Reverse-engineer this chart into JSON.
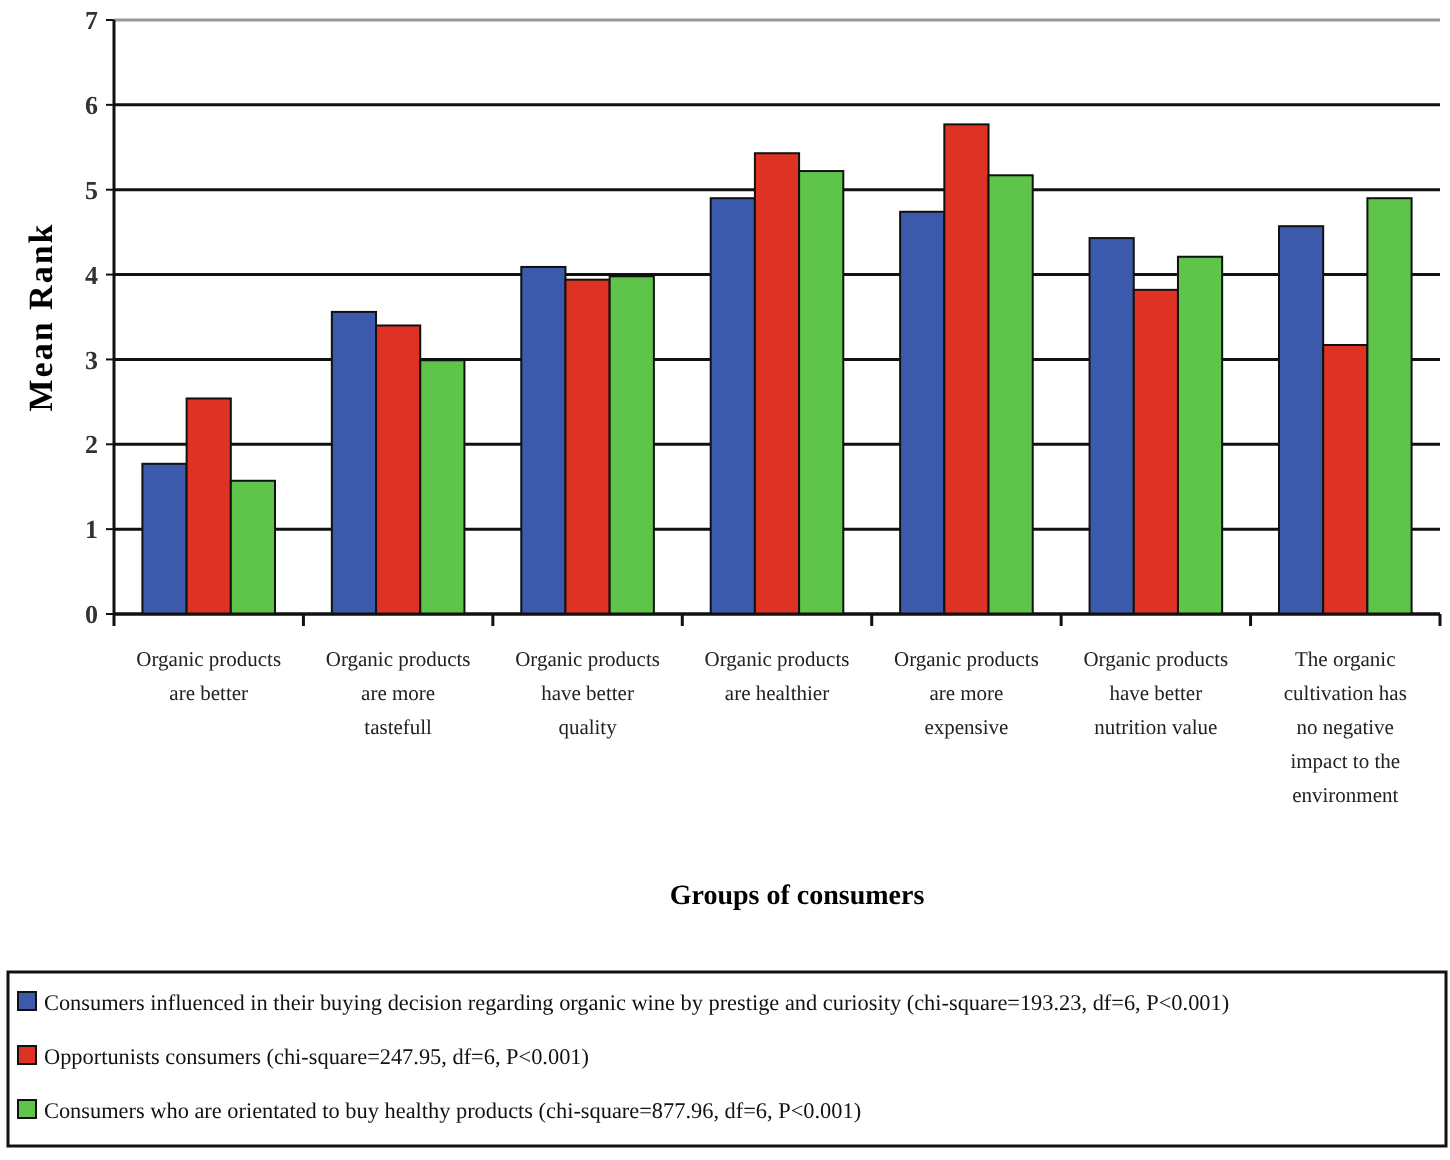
{
  "chart_data": {
    "type": "bar",
    "xlabel": "Groups of consumers",
    "ylabel": "Mean Rank",
    "categories": [
      "Organic products are better",
      "Organic products are more tastefull",
      "Organic products have better quality",
      "Organic products are healthier",
      "Organic products are more expensive",
      "Organic products have better nutrition value",
      "The organic cultivation has no negative impact to the environment"
    ],
    "series": [
      {
        "name": "Consumers influenced in their buying decision regarding organic wine by prestige and curiosity (chi-square=193.23, df=6, P<0.001)",
        "color": "#3c5aab",
        "values": [
          1.77,
          3.56,
          4.09,
          4.9,
          4.74,
          4.43,
          4.57
        ]
      },
      {
        "name": "Opportunists consumers (chi-square=247.95, df=6, P<0.001)",
        "color": "#dd3224",
        "values": [
          2.54,
          3.4,
          3.94,
          5.43,
          5.77,
          3.82,
          3.17
        ]
      },
      {
        "name": "Consumers who are orientated to buy healthy products (chi-square=877.96, df=6, P<0.001)",
        "color": "#5fc54a",
        "values": [
          1.57,
          2.99,
          3.98,
          5.22,
          5.17,
          4.21,
          4.9
        ]
      }
    ],
    "ylim": [
      0,
      7
    ],
    "yticks": [
      0,
      1,
      2,
      3,
      4,
      5,
      6,
      7
    ],
    "grid": "y",
    "legend": "bottom"
  }
}
